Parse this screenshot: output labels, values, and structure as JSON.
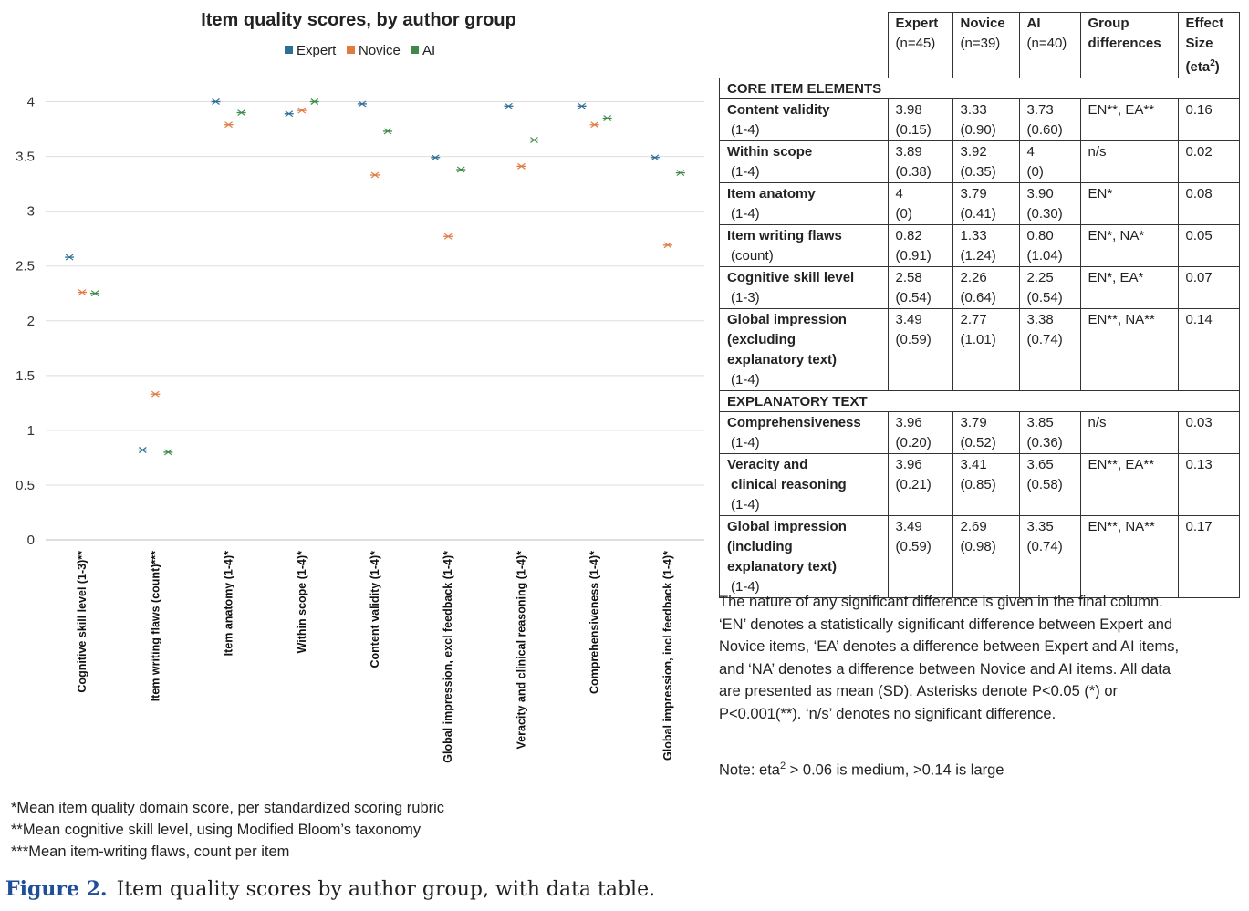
{
  "chart_data": {
    "type": "scatter",
    "title": "Item quality scores, by author group",
    "ylim": [
      0,
      4
    ],
    "yticks": [
      "0",
      "0.5",
      "1",
      "1.5",
      "2",
      "2.5",
      "3",
      "3.5",
      "4"
    ],
    "categories": [
      "Cognitive skill level (1-3)**",
      "Item writing flaws (count)***",
      "Item anatomy (1-4)*",
      "Within scope (1-4)*",
      "Content validity (1-4)*",
      "Global impression, excl feedback (1-4)*",
      "Veracity and clinical reasoning (1-4)*",
      "Comprehensiveness (1-4)*",
      "Global impression, incl feedback (1-4)*"
    ],
    "series": [
      {
        "name": "Expert",
        "color": "#2e6f95",
        "values": [
          2.58,
          0.82,
          4.0,
          3.89,
          3.98,
          3.49,
          3.96,
          3.96,
          3.49
        ]
      },
      {
        "name": "Novice",
        "color": "#e07a3f",
        "values": [
          2.26,
          1.33,
          3.79,
          3.92,
          3.33,
          2.77,
          3.41,
          3.79,
          2.69
        ]
      },
      {
        "name": "AI",
        "color": "#3f8a4a",
        "values": [
          2.25,
          0.8,
          3.9,
          4.0,
          3.73,
          3.38,
          3.65,
          3.85,
          3.35
        ]
      }
    ],
    "legend_position": "top-center",
    "grid": true
  },
  "table": {
    "headers": [
      {
        "line1": "Expert",
        "line2": "(n=45)"
      },
      {
        "line1": "Novice",
        "line2": "(n=39)"
      },
      {
        "line1": "AI",
        "line2": "(n=40)"
      },
      {
        "line1": "Group",
        "line2": "differences"
      },
      {
        "line1": "Effect",
        "line2": "Size",
        "line3a": "(eta",
        "line3sup": "2",
        "line3b": ")"
      }
    ],
    "section_core": "CORE ITEM ELEMENTS",
    "section_expl": "EXPLANATORY TEXT",
    "rows": [
      {
        "label": "Content validity",
        "range": "(1-4)",
        "e_m": "3.98",
        "e_sd": "(0.15)",
        "n_m": "3.33",
        "n_sd": "(0.90)",
        "a_m": "3.73",
        "a_sd": "(0.60)",
        "diff": "EN**, EA**",
        "eta": "0.16"
      },
      {
        "label": "Within scope",
        "range": "(1-4)",
        "e_m": "3.89",
        "e_sd": "(0.38)",
        "n_m": "3.92",
        "n_sd": "(0.35)",
        "a_m": "4",
        "a_sd": "(0)",
        "diff": "n/s",
        "eta": "0.02"
      },
      {
        "label": "Item anatomy",
        "range": "(1-4)",
        "e_m": "4",
        "e_sd": "(0)",
        "n_m": "3.79",
        "n_sd": "(0.41)",
        "a_m": "3.90",
        "a_sd": "(0.30)",
        "diff": "EN*",
        "eta": "0.08"
      },
      {
        "label": "Item writing flaws",
        "range": "(count)",
        "e_m": "0.82",
        "e_sd": "(0.91)",
        "n_m": "1.33",
        "n_sd": "(1.24)",
        "a_m": "0.80",
        "a_sd": "(1.04)",
        "diff": "EN*, NA*",
        "eta": "0.05"
      },
      {
        "label": "Cognitive skill level",
        "range": "(1-3)",
        "e_m": "2.58",
        "e_sd": "(0.54)",
        "n_m": "2.26",
        "n_sd": "(0.64)",
        "a_m": "2.25",
        "a_sd": "(0.54)",
        "diff": "EN*, EA*",
        "eta": "0.07"
      },
      {
        "label1": "Global impression",
        "label2": "(excluding",
        "label3": "explanatory text)",
        "range": "(1-4)",
        "e_m": "3.49",
        "e_sd": "(0.59)",
        "n_m": "2.77",
        "n_sd": "(1.01)",
        "a_m": "3.38",
        "a_sd": "(0.74)",
        "diff": "EN**, NA**",
        "eta": "0.14"
      },
      {
        "label": "Comprehensiveness",
        "range": "(1-4)",
        "e_m": "3.96",
        "e_sd": "(0.20)",
        "n_m": "3.79",
        "n_sd": "(0.52)",
        "a_m": "3.85",
        "a_sd": "(0.36)",
        "diff": "n/s",
        "eta": "0.03"
      },
      {
        "label1": "Veracity and",
        "label2": "clinical reasoning",
        "range": "(1-4)",
        "e_m": "3.96",
        "e_sd": "(0.21)",
        "n_m": "3.41",
        "n_sd": "(0.85)",
        "a_m": "3.65",
        "a_sd": "(0.58)",
        "diff": "EN**, EA**",
        "eta": "0.13"
      },
      {
        "label1": "Global impression",
        "label2": "(including",
        "label3": "explanatory text)",
        "range": "(1-4)",
        "e_m": "3.49",
        "e_sd": "(0.59)",
        "n_m": "2.69",
        "n_sd": "(0.98)",
        "a_m": "3.35",
        "a_sd": "(0.74)",
        "diff": "EN**, NA**",
        "eta": "0.17"
      }
    ]
  },
  "table_note": "The nature of any significant difference is given in the final column. ‘EN’ denotes a statistically significant difference between Expert and Novice items, ‘EA’ denotes a difference between Expert and AI items, and ‘NA’ denotes a difference between Novice and AI items. All data are presented as mean (SD). Asterisks denote P<0.05 (*) or P<0.001(**). ‘n/s’ denotes no significant difference.",
  "eta_note": {
    "prefix": "Note: eta",
    "sup": "2",
    "suffix": " > 0.06 is medium, >0.14 is large"
  },
  "footnotes": [
    "*Mean item quality domain score, per standardized scoring rubric",
    "**Mean cognitive skill level, using Modified Bloom’s taxonomy",
    "***Mean item-writing flaws, count per item"
  ],
  "caption": {
    "number": "Figure 2.",
    "text": "Item quality scores by author group, with data table."
  }
}
